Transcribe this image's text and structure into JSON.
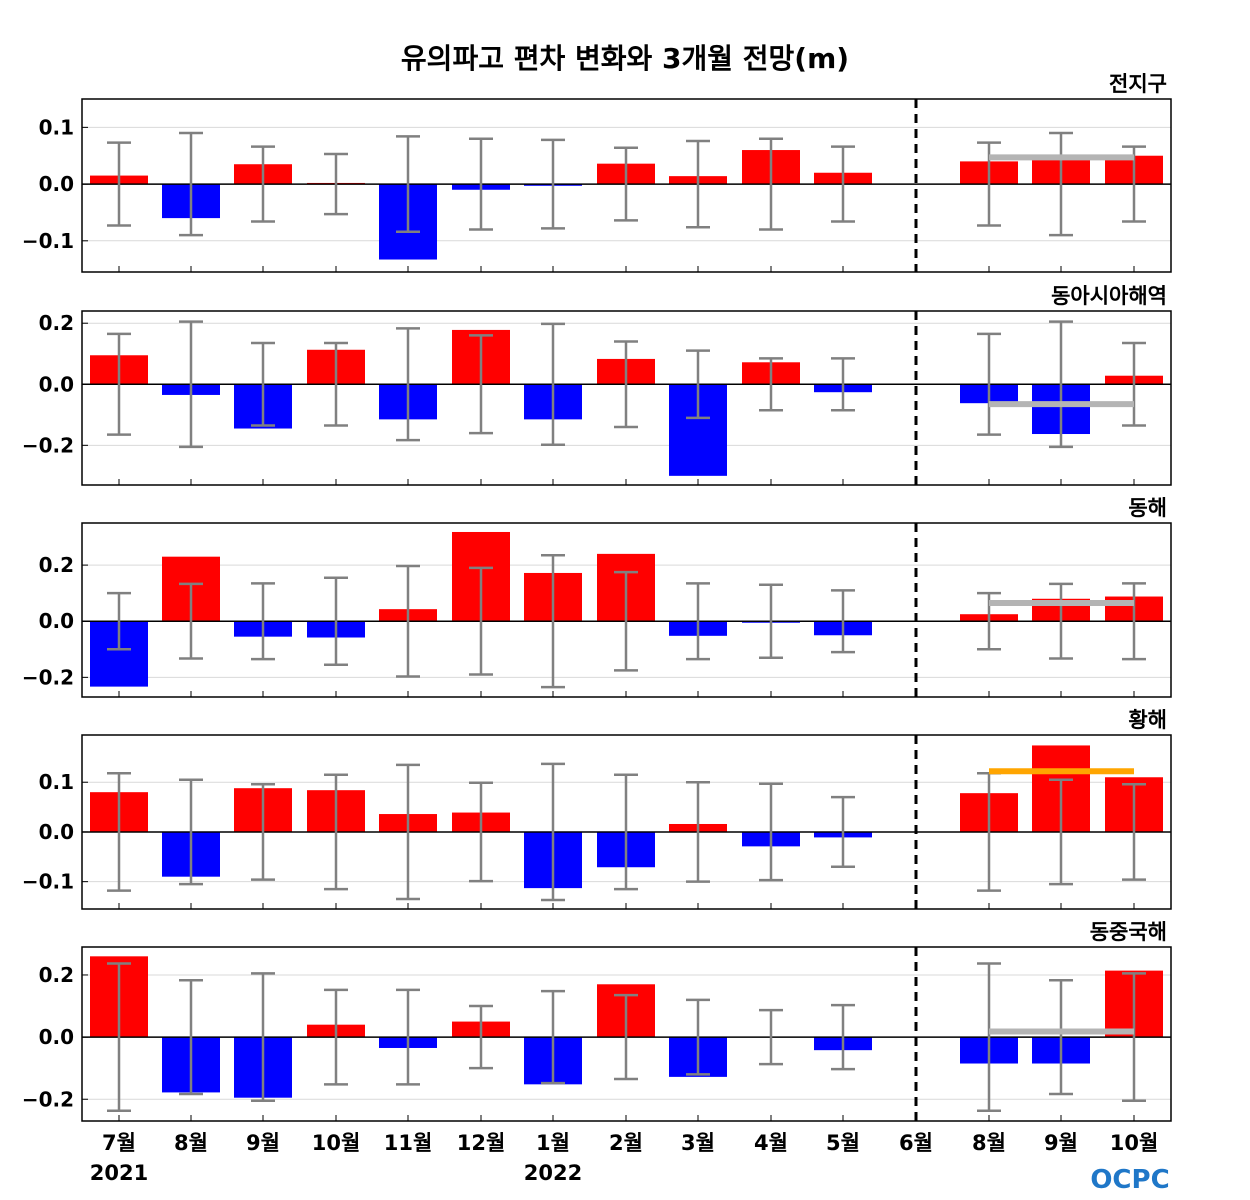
{
  "chart_data": {
    "type": "bar",
    "title": "유의파고 편차 변화와 3개월 전망(m)",
    "x_labels": [
      "7월",
      "8월",
      "9월",
      "10월",
      "11월",
      "12월",
      "1월",
      "2월",
      "3월",
      "4월",
      "5월",
      "6월",
      "8월",
      "9월",
      "10월"
    ],
    "year_labels": [
      {
        "index": 0,
        "label": "2021"
      },
      {
        "index": 6,
        "label": "2022"
      }
    ],
    "forecast_divider_after_index": 11,
    "colors": {
      "positive": "#ff0000",
      "negative": "#0000ff",
      "error_bar": "#808080",
      "forecast_line_gray": "#b4b4b4",
      "forecast_line_orange": "#ffa500"
    },
    "panels": [
      {
        "name": "전지구",
        "ylim": [
          -0.155,
          0.15
        ],
        "yticks": [
          -0.1,
          0.0,
          0.1
        ],
        "ytick_labels": [
          "−0.1",
          "0.0",
          "0.1"
        ],
        "values": [
          0.015,
          -0.06,
          0.035,
          0.002,
          -0.133,
          -0.01,
          -0.003,
          0.036,
          0.014,
          0.06,
          0.02,
          0.0,
          0.04,
          0.05,
          0.05
        ],
        "error": [
          0.073,
          0.09,
          0.066,
          0.053,
          0.084,
          0.08,
          0.078,
          0.064,
          0.076,
          0.08,
          0.066,
          null,
          0.073,
          0.09,
          0.066
        ],
        "forecast_line": {
          "value": 0.047,
          "from": 12,
          "to": 14,
          "color": "gray"
        }
      },
      {
        "name": "동아시아해역",
        "ylim": [
          -0.33,
          0.24
        ],
        "yticks": [
          -0.2,
          0.0,
          0.2
        ],
        "ytick_labels": [
          "−0.2",
          "0.0",
          "0.2"
        ],
        "values": [
          0.095,
          -0.035,
          -0.145,
          0.113,
          -0.115,
          0.178,
          -0.115,
          0.083,
          -0.3,
          0.072,
          -0.026,
          0.0,
          -0.062,
          -0.163,
          0.028
        ],
        "error": [
          0.165,
          0.205,
          0.135,
          0.135,
          0.183,
          0.16,
          0.198,
          0.14,
          0.11,
          0.085,
          0.085,
          null,
          0.165,
          0.205,
          0.135
        ],
        "forecast_line": {
          "value": -0.065,
          "from": 12,
          "to": 14,
          "color": "gray"
        }
      },
      {
        "name": "동해",
        "ylim": [
          -0.27,
          0.35
        ],
        "yticks": [
          -0.2,
          0.0,
          0.2
        ],
        "ytick_labels": [
          "−0.2",
          "0.0",
          "0.2"
        ],
        "values": [
          -0.233,
          0.23,
          -0.055,
          -0.058,
          0.043,
          0.318,
          0.172,
          0.24,
          -0.052,
          -0.002,
          -0.05,
          0.0,
          0.025,
          0.08,
          0.088
        ],
        "error": [
          0.1,
          0.133,
          0.135,
          0.155,
          0.197,
          0.19,
          0.235,
          0.175,
          0.135,
          0.13,
          0.11,
          null,
          0.1,
          0.133,
          0.135
        ],
        "forecast_line": {
          "value": 0.065,
          "from": 12,
          "to": 14,
          "color": "gray"
        }
      },
      {
        "name": "황해",
        "ylim": [
          -0.155,
          0.195
        ],
        "yticks": [
          -0.1,
          0.0,
          0.1
        ],
        "ytick_labels": [
          "−0.1",
          "0.0",
          "0.1"
        ],
        "values": [
          0.08,
          -0.09,
          0.088,
          0.084,
          0.036,
          0.039,
          -0.113,
          -0.071,
          0.016,
          -0.029,
          -0.011,
          0.0,
          0.078,
          0.174,
          0.11
        ],
        "error": [
          0.118,
          0.105,
          0.096,
          0.115,
          0.135,
          0.099,
          0.137,
          0.115,
          0.1,
          0.097,
          0.07,
          null,
          0.118,
          0.105,
          0.096
        ],
        "forecast_line": {
          "value": 0.122,
          "from": 12,
          "to": 14,
          "color": "orange"
        }
      },
      {
        "name": "동중국해",
        "ylim": [
          -0.27,
          0.29
        ],
        "yticks": [
          -0.2,
          0.0,
          0.2
        ],
        "ytick_labels": [
          "−0.2",
          "0.0",
          "0.2"
        ],
        "values": [
          0.26,
          -0.178,
          -0.195,
          0.04,
          -0.035,
          0.05,
          -0.152,
          0.17,
          -0.128,
          0.0,
          -0.042,
          0.0,
          -0.085,
          -0.085,
          0.214
        ],
        "error": [
          0.237,
          0.183,
          0.205,
          0.152,
          0.152,
          0.1,
          0.148,
          0.135,
          0.12,
          0.087,
          0.103,
          null,
          0.237,
          0.183,
          0.205
        ],
        "forecast_line": {
          "value": 0.018,
          "from": 12,
          "to": 14,
          "color": "gray"
        }
      }
    ]
  },
  "logo_text": "OCPC"
}
